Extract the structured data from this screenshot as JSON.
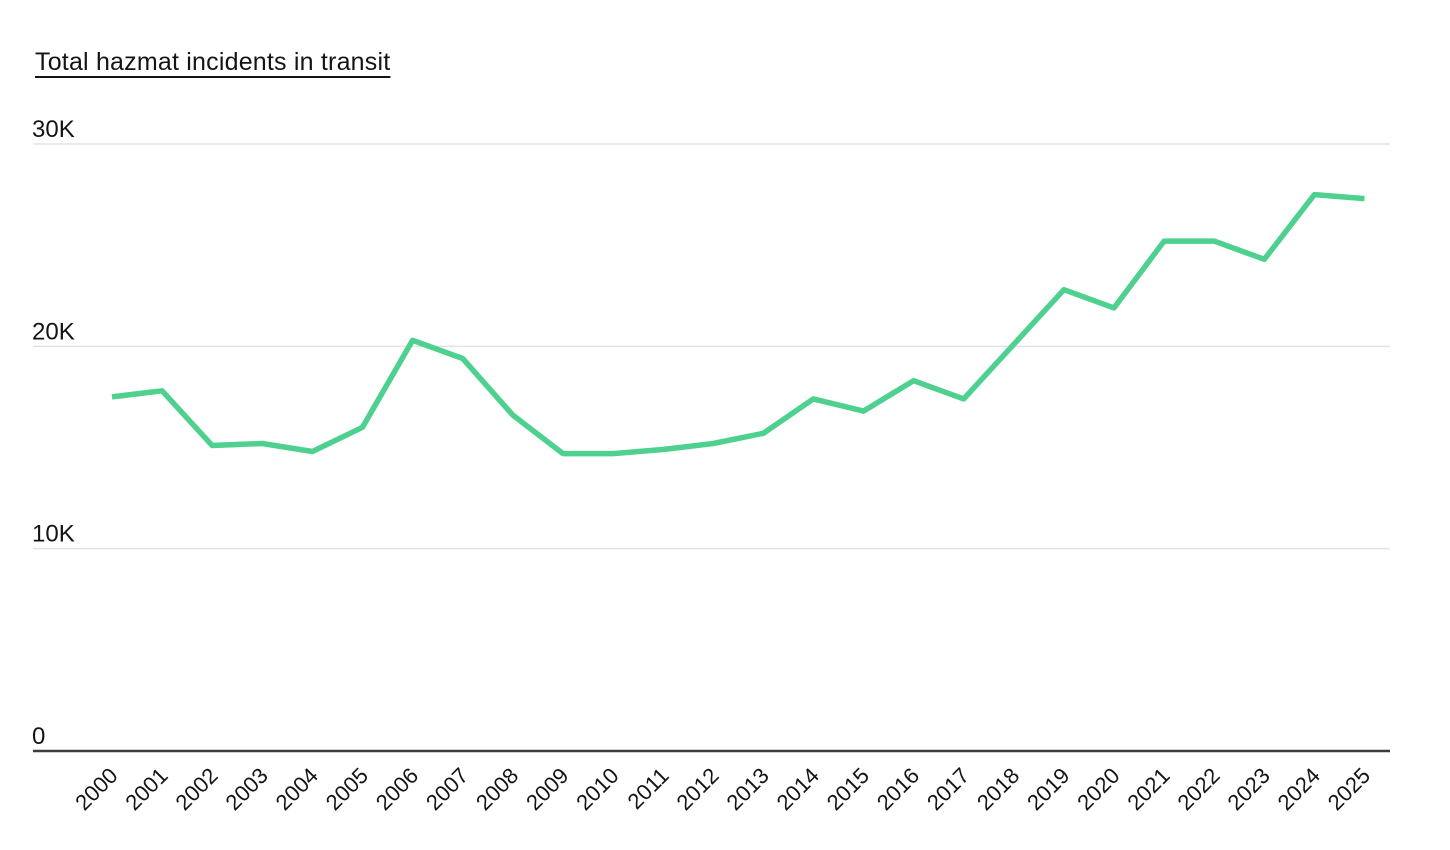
{
  "page": {
    "background": "#ffffff"
  },
  "chart_data": {
    "type": "line",
    "title": "Total hazmat incidents in transit",
    "categories": [
      "2000",
      "2001",
      "2002",
      "2003",
      "2004",
      "2005",
      "2006",
      "2007",
      "2008",
      "2009",
      "2010",
      "2011",
      "2012",
      "2013",
      "2014",
      "2015",
      "2016",
      "2017",
      "2018",
      "2019",
      "2020",
      "2021",
      "2022",
      "2023",
      "2024",
      "2025"
    ],
    "values": [
      17500,
      17800,
      15100,
      15200,
      14800,
      16000,
      20300,
      19400,
      16600,
      14700,
      14700,
      14900,
      15200,
      15700,
      17400,
      16800,
      18300,
      17400,
      20100,
      22800,
      21900,
      25200,
      25200,
      24300,
      27500,
      27300
    ],
    "xlabel": "",
    "ylabel": "",
    "ylim": [
      0,
      30000
    ],
    "y_ticks": [
      {
        "label": "0",
        "value": 0
      },
      {
        "label": "10K",
        "value": 10000
      },
      {
        "label": "20K",
        "value": 20000
      },
      {
        "label": "30K",
        "value": 30000
      }
    ],
    "grid": "horizontal",
    "legend": "none",
    "x_tick_rotation_deg": -45,
    "colors": {
      "line": "#4ed18f",
      "gridline": "#e3e3e3",
      "zero_axis": "#3d3d3d",
      "text": "#141414"
    }
  }
}
